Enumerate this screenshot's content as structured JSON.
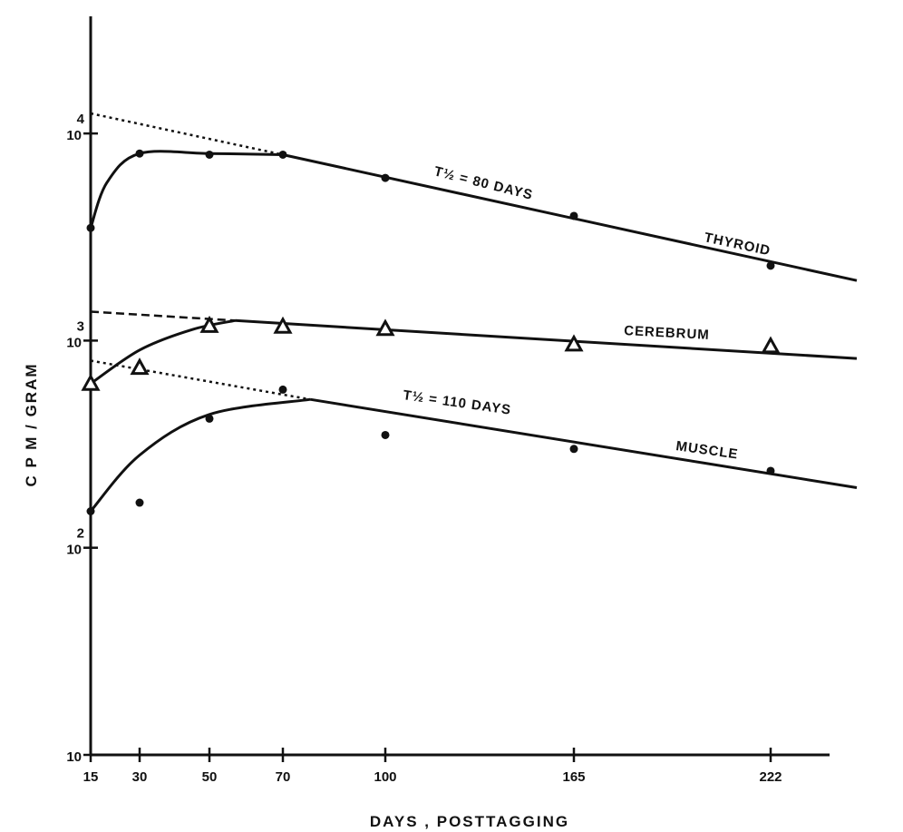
{
  "chart_data": {
    "type": "line",
    "title": "",
    "xlabel": "DAYS , POSTTAGGING",
    "ylabel": "C P M / GRAM",
    "yscale": "log",
    "ylim": [
      10,
      100000
    ],
    "x_ticks": [
      {
        "value": 15,
        "label": "15"
      },
      {
        "value": 30,
        "label": "30"
      },
      {
        "value": 50,
        "label": "50"
      },
      {
        "value": 70,
        "label": "70"
      },
      {
        "value": 100,
        "label": "100"
      },
      {
        "value": 165,
        "label": "165"
      },
      {
        "value": 222,
        "label": "222"
      }
    ],
    "y_ticks": [
      {
        "value": 10,
        "base": "10",
        "exp": ""
      },
      {
        "value": 100,
        "base": "10",
        "exp": "2"
      },
      {
        "value": 1000,
        "base": "10",
        "exp": "3"
      },
      {
        "value": 10000,
        "base": "10",
        "exp": "4"
      }
    ],
    "series": [
      {
        "name": "THYROID",
        "marker": "dot",
        "points": [
          {
            "x": 15,
            "y": 3500
          },
          {
            "x": 30,
            "y": 8000
          },
          {
            "x": 50,
            "y": 7900
          },
          {
            "x": 70,
            "y": 7900
          },
          {
            "x": 100,
            "y": 6100
          },
          {
            "x": 165,
            "y": 4000
          },
          {
            "x": 222,
            "y": 2300
          }
        ],
        "curve": [
          [
            15,
            3500
          ],
          [
            20,
            5800
          ],
          [
            30,
            8000
          ],
          [
            50,
            8000
          ],
          [
            70,
            7900
          ]
        ],
        "fit_line": [
          [
            70,
            7900
          ],
          [
            250,
            1950
          ]
        ],
        "extrapolation": [
          [
            15,
            12500
          ],
          [
            70,
            7900
          ]
        ],
        "extrapolation_style": "dotted",
        "annotation": "T½ = 80 DAYS"
      },
      {
        "name": "CEREBRUM",
        "marker": "triangle",
        "points": [
          {
            "x": 15,
            "y": 620
          },
          {
            "x": 30,
            "y": 740
          },
          {
            "x": 50,
            "y": 1180
          },
          {
            "x": 70,
            "y": 1170
          },
          {
            "x": 100,
            "y": 1140
          },
          {
            "x": 165,
            "y": 960
          },
          {
            "x": 222,
            "y": 940
          }
        ],
        "curve": [
          [
            15,
            620
          ],
          [
            30,
            900
          ],
          [
            45,
            1130
          ],
          [
            57,
            1250
          ]
        ],
        "fit_line": [
          [
            57,
            1250
          ],
          [
            250,
            820
          ]
        ],
        "extrapolation": [
          [
            15,
            1380
          ],
          [
            57,
            1250
          ]
        ],
        "extrapolation_style": "dashed"
      },
      {
        "name": "MUSCLE",
        "marker": "dot",
        "points": [
          {
            "x": 15,
            "y": 150
          },
          {
            "x": 30,
            "y": 165
          },
          {
            "x": 50,
            "y": 420
          },
          {
            "x": 70,
            "y": 580
          },
          {
            "x": 100,
            "y": 350
          },
          {
            "x": 165,
            "y": 300
          },
          {
            "x": 222,
            "y": 235
          }
        ],
        "curve": [
          [
            15,
            150
          ],
          [
            30,
            280
          ],
          [
            50,
            440
          ],
          [
            78,
            520
          ]
        ],
        "fit_line": [
          [
            78,
            520
          ],
          [
            250,
            195
          ]
        ],
        "extrapolation": [
          [
            15,
            800
          ],
          [
            78,
            520
          ]
        ],
        "extrapolation_style": "dotted",
        "annotation": "T½ = 110 DAYS"
      }
    ]
  }
}
